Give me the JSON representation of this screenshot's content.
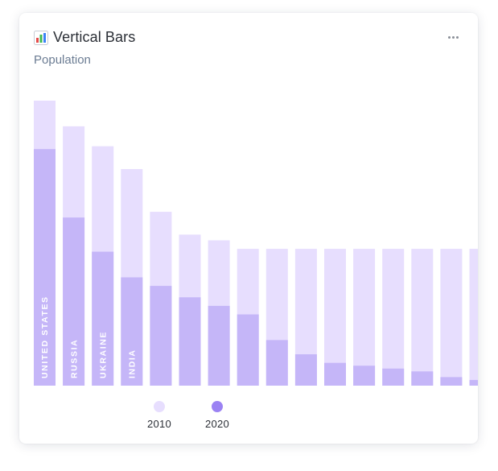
{
  "header": {
    "title": "Vertical Bars",
    "subtitle": "Population",
    "icon": "bar-chart-icon",
    "menu_icon": "more-horizontal-icon"
  },
  "colors": {
    "series_2010": "#e7defe",
    "series_2020": "#c5b6f8",
    "legend_2020": "#9b82f3",
    "icon_red": "#e54b4b",
    "icon_green": "#3fb950",
    "icon_blue": "#3b82f6"
  },
  "chart_data": {
    "type": "bar",
    "title": "Vertical Bars",
    "subtitle": "Population",
    "categories": [
      "UNITED STATES",
      "RUSSIA",
      "UKRAINE",
      "INDIA",
      "",
      "",
      "",
      "",
      "",
      "",
      "",
      "",
      "",
      "",
      "",
      ""
    ],
    "series": [
      {
        "name": "2010",
        "values": [
          100,
          91,
          84,
          76,
          61,
          53,
          51,
          48,
          48,
          48,
          48,
          48,
          48,
          48,
          48,
          48
        ]
      },
      {
        "name": "2020",
        "values": [
          83,
          59,
          47,
          38,
          35,
          31,
          28,
          25,
          16,
          11,
          8,
          7,
          6,
          5,
          3,
          2
        ]
      }
    ],
    "ylim": [
      0,
      100
    ],
    "grid": false,
    "legend_position": "bottom"
  }
}
